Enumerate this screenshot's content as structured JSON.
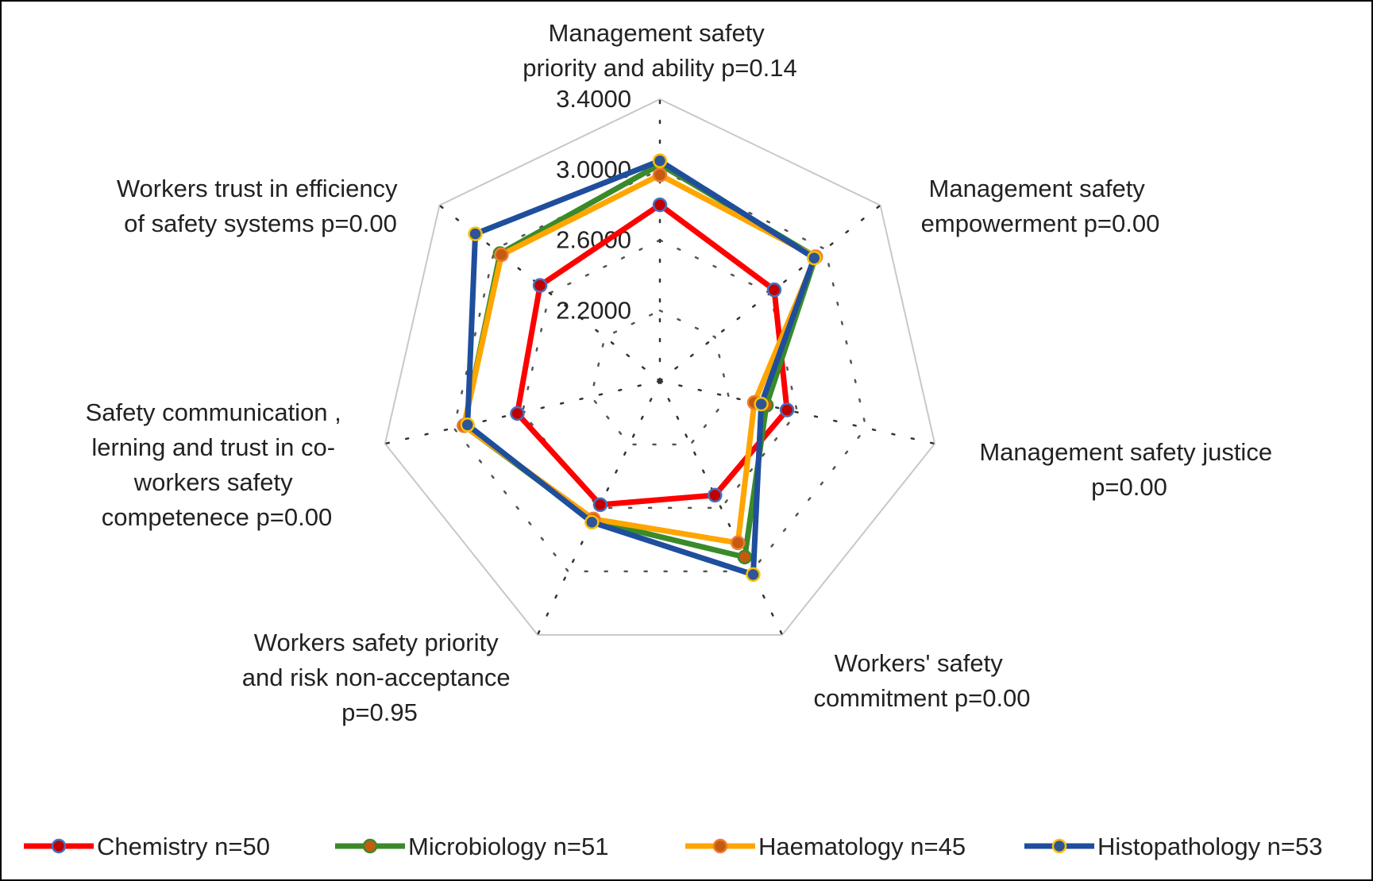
{
  "chart_data": {
    "type": "radar",
    "axes": [
      [
        "Management safety",
        "priority and ability p=0.14"
      ],
      [
        "Management safety",
        "empowerment p=0.00"
      ],
      [
        "Management safety justice",
        "p=0.00"
      ],
      [
        "Workers' safety",
        "commitment p=0.00"
      ],
      [
        "Workers safety priority",
        "and risk non-acceptance",
        "p=0.95"
      ],
      [
        "Safety communication ,",
        "lerning and trust in co-",
        "workers safety",
        "competenece p=0.00"
      ],
      [
        "Workers trust in efficiency",
        "of safety systems p=0.00"
      ]
    ],
    "ticks": [
      "2.2000",
      "2.6000",
      "3.0000",
      "3.4000"
    ],
    "rmin": 1.8,
    "rmax": 3.4,
    "tick_values": [
      2.2,
      2.6,
      3.0,
      3.4
    ],
    "series": [
      {
        "name": "Chemistry n=50",
        "color": "#ff0000",
        "marker_fill": "#c00000",
        "marker_stroke": "#4472c4",
        "values": [
          2.8,
          2.63,
          2.54,
          2.52,
          2.58,
          2.63,
          2.67
        ]
      },
      {
        "name": "Microbiology n=51",
        "color": "#3a8a2a",
        "marker_fill": "#c55a11",
        "marker_stroke": "#3a8a2a",
        "values": [
          3.03,
          2.93,
          2.42,
          2.91,
          2.68,
          2.94,
          2.96
        ]
      },
      {
        "name": "Haematology n=45",
        "color": "#ffa500",
        "marker_fill": "#c55a11",
        "marker_stroke": "#ed7d31",
        "values": [
          2.97,
          2.93,
          2.35,
          2.82,
          2.67,
          2.94,
          2.95
        ]
      },
      {
        "name": "Histopathology n=53",
        "color": "#1f4e9c",
        "marker_fill": "#2f5597",
        "marker_stroke": "#ffc000",
        "values": [
          3.05,
          2.92,
          2.39,
          3.02,
          2.69,
          2.92,
          3.14
        ]
      }
    ]
  }
}
